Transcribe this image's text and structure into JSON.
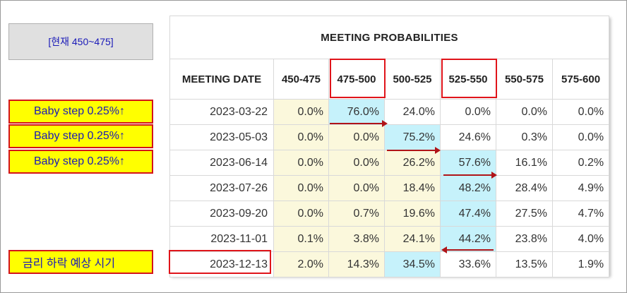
{
  "current_range_label": "[현재 450~475]",
  "table": {
    "title": "MEETING PROBABILITIES",
    "date_header": "MEETING DATE",
    "columns": [
      "450-475",
      "475-500",
      "500-525",
      "525-550",
      "550-575",
      "575-600"
    ],
    "rows": [
      {
        "date": "2023-03-22",
        "values": [
          "0.0%",
          "76.0%",
          "24.0%",
          "0.0%",
          "0.0%",
          "0.0%"
        ]
      },
      {
        "date": "2023-05-03",
        "values": [
          "0.0%",
          "0.0%",
          "75.2%",
          "24.6%",
          "0.3%",
          "0.0%"
        ]
      },
      {
        "date": "2023-06-14",
        "values": [
          "0.0%",
          "0.0%",
          "26.2%",
          "57.6%",
          "16.1%",
          "0.2%"
        ]
      },
      {
        "date": "2023-07-26",
        "values": [
          "0.0%",
          "0.0%",
          "18.4%",
          "48.2%",
          "28.4%",
          "4.9%"
        ]
      },
      {
        "date": "2023-09-20",
        "values": [
          "0.0%",
          "0.7%",
          "19.6%",
          "47.4%",
          "27.5%",
          "4.7%"
        ]
      },
      {
        "date": "2023-11-01",
        "values": [
          "0.1%",
          "3.8%",
          "24.1%",
          "44.2%",
          "23.8%",
          "4.0%"
        ]
      },
      {
        "date": "2023-12-13",
        "values": [
          "2.0%",
          "14.3%",
          "34.5%",
          "33.6%",
          "13.5%",
          "1.9%"
        ]
      }
    ]
  },
  "annotations": {
    "baby_step_1": "Baby step 0.25%↑",
    "baby_step_2": "Baby step 0.25%↑",
    "baby_step_3": "Baby step 0.25%↑",
    "rate_cut_label": "금리 하락 예상 시기"
  },
  "colors": {
    "highlight_red": "#e0141a",
    "label_yellow": "#ffff00",
    "label_text_blue": "#1a1ab8",
    "cream_column": "#fbf8dc",
    "cyan_cell": "#c6f2fb",
    "arrow_red": "#b01418"
  }
}
